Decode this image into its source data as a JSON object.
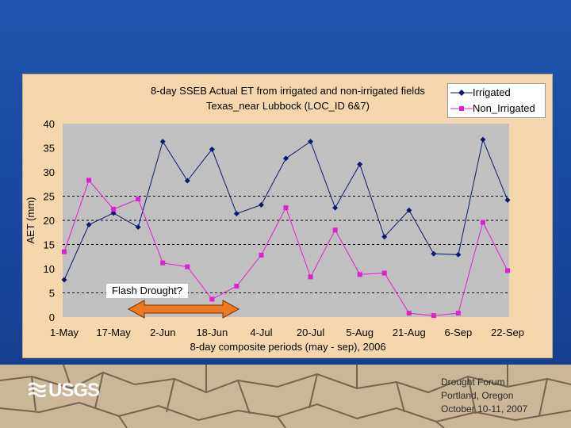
{
  "chart_data": {
    "type": "line",
    "title": "8-day SSEB Actual ET from irrigated and non-irrigated fields",
    "subtitle": "Texas_near Lubbock (LOC_ID 6&7)",
    "xlabel": "8-day composite periods (may - sep), 2006",
    "ylabel": "AET (mm)",
    "ylim": [
      0,
      40
    ],
    "yticks": [
      0,
      5,
      10,
      15,
      20,
      25,
      30,
      35,
      40
    ],
    "x_tick_labels": [
      "1-May",
      "17-May",
      "2-Jun",
      "18-Jun",
      "4-Jul",
      "20-Jul",
      "5-Aug",
      "21-Aug",
      "6-Sep",
      "22-Sep"
    ],
    "periods": 19,
    "reference_lines": [
      25,
      20,
      15,
      5
    ],
    "series": [
      {
        "name": "Irrigated",
        "color": "#0a1a6b",
        "marker": "diamond",
        "values": [
          7.7,
          19.1,
          21.5,
          18.6,
          36.3,
          28.2,
          34.7,
          21.4,
          23.2,
          32.8,
          36.3,
          22.6,
          31.6,
          16.6,
          22.1,
          13.1,
          12.9,
          36.7,
          24.2
        ]
      },
      {
        "name": "Non_Irrigated",
        "color": "#e020d0",
        "marker": "square",
        "values": [
          13.5,
          28.3,
          22.3,
          24.4,
          11.2,
          10.4,
          3.7,
          6.4,
          12.8,
          22.6,
          8.3,
          18.0,
          8.8,
          9.1,
          0.8,
          0.3,
          0.8,
          19.6,
          9.6
        ]
      }
    ],
    "annotations": [
      {
        "text": "Flash Drought?",
        "span": [
          "2-Jun",
          "18-Jun"
        ]
      }
    ]
  },
  "slide": {
    "logo_text": "USGS",
    "event_lines": [
      "Drought Forum",
      "Portland, Oregon",
      "October 10-11, 2007"
    ]
  },
  "colors": {
    "background": "#1b4aa0",
    "panel": "#f6d7ad",
    "plot_area": "#c0c0c0",
    "arrow": "#f07820"
  }
}
